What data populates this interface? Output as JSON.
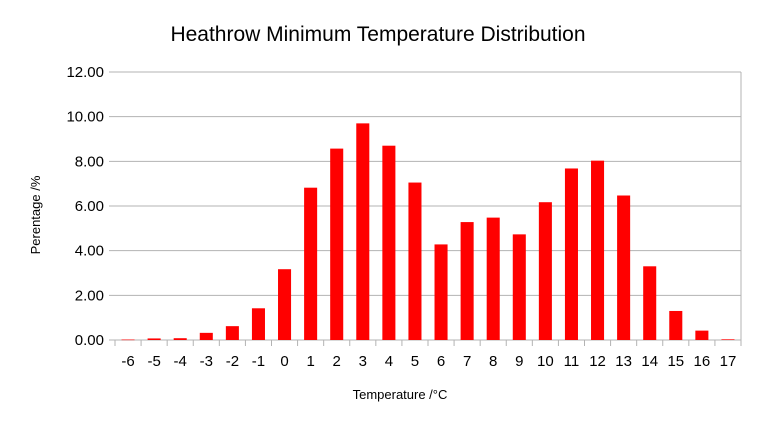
{
  "chart_data": {
    "type": "bar",
    "title": "Heathrow Minimum Temperature Distribution",
    "xlabel": "Temperature /°C",
    "ylabel": "Perentage /%",
    "categories": [
      "-6",
      "-5",
      "-4",
      "-3",
      "-2",
      "-1",
      "0",
      "1",
      "2",
      "3",
      "4",
      "5",
      "6",
      "7",
      "8",
      "9",
      "10",
      "11",
      "12",
      "13",
      "14",
      "15",
      "16",
      "17"
    ],
    "values": [
      0.02,
      0.07,
      0.08,
      0.32,
      0.62,
      1.42,
      3.17,
      6.82,
      8.57,
      9.7,
      8.7,
      7.05,
      4.28,
      5.28,
      5.48,
      4.73,
      6.17,
      7.68,
      8.03,
      6.47,
      3.3,
      1.3,
      0.42,
      0.03
    ],
    "ylim": [
      0,
      12
    ],
    "yticks": [
      "0.00",
      "2.00",
      "4.00",
      "6.00",
      "8.00",
      "10.00",
      "12.00"
    ],
    "grid": true,
    "legend": "none",
    "bar_color": "#ff0000"
  }
}
